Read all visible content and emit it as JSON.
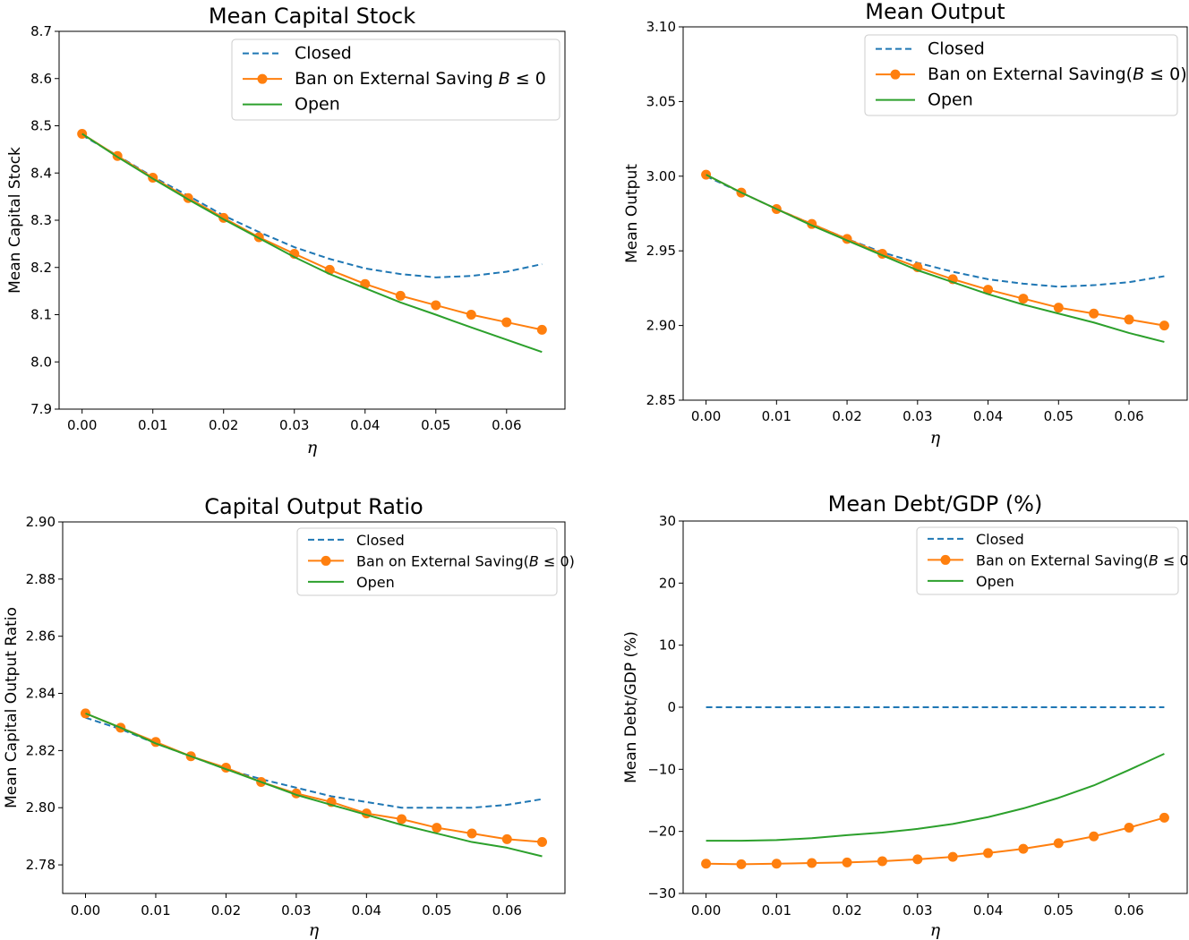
{
  "colors": {
    "closed": "#1f77b4",
    "ban": "#ff7f0e",
    "open": "#2ca02c"
  },
  "chart_data": [
    {
      "type": "line",
      "title": "Mean  Capital Stock",
      "xlabel": "η",
      "ylabel": "Mean  Capital Stock",
      "xlim": [
        -0.00325,
        0.06825
      ],
      "ylim": [
        7.9,
        8.7
      ],
      "xticks": [
        0.0,
        0.01,
        0.02,
        0.03,
        0.04,
        0.05,
        0.06
      ],
      "xtick_labels": [
        "0.00",
        "0.01",
        "0.02",
        "0.03",
        "0.04",
        "0.05",
        "0.06"
      ],
      "yticks": [
        7.9,
        8.0,
        8.1,
        8.2,
        8.3,
        8.4,
        8.5,
        8.6,
        8.7
      ],
      "ytick_labels": [
        "7.9",
        "8.0",
        "8.1",
        "8.2",
        "8.3",
        "8.4",
        "8.5",
        "8.6",
        "8.7"
      ],
      "legend": [
        "Closed",
        "Ban on External Saving $B \\leq 0$",
        "Open"
      ],
      "legend_position": "top-right",
      "x": [
        0.0,
        0.005,
        0.01,
        0.015,
        0.02,
        0.025,
        0.03,
        0.035,
        0.04,
        0.045,
        0.05,
        0.055,
        0.06,
        0.065
      ],
      "series": [
        {
          "name": "Closed",
          "values": [
            8.48,
            8.437,
            8.392,
            8.352,
            8.31,
            8.275,
            8.243,
            8.218,
            8.198,
            8.186,
            8.179,
            8.182,
            8.191,
            8.207
          ]
        },
        {
          "name": "Ban on External Saving",
          "values": [
            8.483,
            8.436,
            8.39,
            8.347,
            8.305,
            8.264,
            8.229,
            8.195,
            8.165,
            8.14,
            8.12,
            8.1,
            8.084,
            8.068
          ]
        },
        {
          "name": "Open",
          "values": [
            8.483,
            8.434,
            8.388,
            8.344,
            8.302,
            8.262,
            8.222,
            8.186,
            8.156,
            8.126,
            8.1,
            8.073,
            8.047,
            8.021
          ]
        }
      ]
    },
    {
      "type": "line",
      "title": "Mean Output",
      "xlabel": "η",
      "ylabel": "Mean Output",
      "xlim": [
        -0.00325,
        0.06825
      ],
      "ylim": [
        2.85,
        3.1
      ],
      "xticks": [
        0.0,
        0.01,
        0.02,
        0.03,
        0.04,
        0.05,
        0.06
      ],
      "xtick_labels": [
        "0.00",
        "0.01",
        "0.02",
        "0.03",
        "0.04",
        "0.05",
        "0.06"
      ],
      "yticks": [
        2.85,
        2.9,
        2.95,
        3.0,
        3.05,
        3.1
      ],
      "ytick_labels": [
        "2.85",
        "2.90",
        "2.95",
        "3.00",
        "3.05",
        "3.10"
      ],
      "legend": [
        "Closed",
        "Ban on External Saving$(B \\leq 0)$",
        "Open"
      ],
      "legend_position": "top-right",
      "x": [
        0.0,
        0.005,
        0.01,
        0.015,
        0.02,
        0.025,
        0.03,
        0.035,
        0.04,
        0.045,
        0.05,
        0.055,
        0.06,
        0.065
      ],
      "series": [
        {
          "name": "Closed",
          "values": [
            3.0,
            2.989,
            2.978,
            2.968,
            2.958,
            2.949,
            2.942,
            2.936,
            2.931,
            2.928,
            2.926,
            2.927,
            2.929,
            2.933
          ]
        },
        {
          "name": "Ban on External Saving",
          "values": [
            3.001,
            2.989,
            2.978,
            2.968,
            2.958,
            2.948,
            2.939,
            2.931,
            2.924,
            2.918,
            2.912,
            2.908,
            2.904,
            2.9
          ]
        },
        {
          "name": "Open",
          "values": [
            3.001,
            2.989,
            2.978,
            2.967,
            2.957,
            2.947,
            2.937,
            2.929,
            2.921,
            2.914,
            2.908,
            2.902,
            2.895,
            2.889
          ]
        }
      ]
    },
    {
      "type": "line",
      "title": "Capital Output Ratio",
      "xlabel": "η",
      "ylabel": "Mean Capital Output Ratio",
      "xlim": [
        -0.00325,
        0.06825
      ],
      "ylim": [
        2.77,
        2.9
      ],
      "xticks": [
        0.0,
        0.01,
        0.02,
        0.03,
        0.04,
        0.05,
        0.06
      ],
      "xtick_labels": [
        "0.00",
        "0.01",
        "0.02",
        "0.03",
        "0.04",
        "0.05",
        "0.06"
      ],
      "yticks": [
        2.78,
        2.8,
        2.82,
        2.84,
        2.86,
        2.88,
        2.9
      ],
      "ytick_labels": [
        "2.78",
        "2.80",
        "2.82",
        "2.84",
        "2.86",
        "2.88",
        "2.90"
      ],
      "legend": [
        "Closed",
        "Ban on External Saving$(B \\leq 0)$",
        "Open"
      ],
      "legend_position": "top-right",
      "x": [
        0.0,
        0.005,
        0.01,
        0.015,
        0.02,
        0.025,
        0.03,
        0.035,
        0.04,
        0.045,
        0.05,
        0.055,
        0.06,
        0.065
      ],
      "series": [
        {
          "name": "Closed",
          "values": [
            2.8315,
            2.8275,
            2.8225,
            2.818,
            2.8135,
            2.81,
            2.807,
            2.804,
            2.802,
            2.8,
            2.8,
            2.8,
            2.801,
            2.803
          ]
        },
        {
          "name": "Ban on External Saving",
          "values": [
            2.833,
            2.828,
            2.823,
            2.818,
            2.814,
            2.809,
            2.805,
            2.802,
            2.798,
            2.796,
            2.793,
            2.791,
            2.789,
            2.788
          ]
        },
        {
          "name": "Open",
          "values": [
            2.833,
            2.828,
            2.8225,
            2.818,
            2.8135,
            2.809,
            2.8045,
            2.801,
            2.7975,
            2.794,
            2.791,
            2.788,
            2.786,
            2.783
          ]
        }
      ]
    },
    {
      "type": "line",
      "title": "Mean Debt/GDP (%)",
      "xlabel": "η",
      "ylabel": "Mean Debt/GDP (%)",
      "xlim": [
        -0.00325,
        0.06825
      ],
      "ylim": [
        -30,
        30
      ],
      "xticks": [
        0.0,
        0.01,
        0.02,
        0.03,
        0.04,
        0.05,
        0.06
      ],
      "xtick_labels": [
        "0.00",
        "0.01",
        "0.02",
        "0.03",
        "0.04",
        "0.05",
        "0.06"
      ],
      "yticks": [
        -30,
        -20,
        -10,
        0,
        10,
        20,
        30
      ],
      "ytick_labels": [
        "−30",
        "−20",
        "−10",
        "0",
        "10",
        "20",
        "30"
      ],
      "legend": [
        "Closed",
        "Ban on External Saving$(B \\leq 0)$",
        "Open"
      ],
      "legend_position": "top-right",
      "x": [
        0.0,
        0.005,
        0.01,
        0.015,
        0.02,
        0.025,
        0.03,
        0.035,
        0.04,
        0.045,
        0.05,
        0.055,
        0.06,
        0.065
      ],
      "series": [
        {
          "name": "Closed",
          "values": [
            0,
            0,
            0,
            0,
            0,
            0,
            0,
            0,
            0,
            0,
            0,
            0,
            0,
            0
          ]
        },
        {
          "name": "Ban on External Saving",
          "values": [
            -25.2,
            -25.3,
            -25.2,
            -25.1,
            -25.0,
            -24.8,
            -24.5,
            -24.1,
            -23.5,
            -22.8,
            -21.9,
            -20.8,
            -19.4,
            -17.8
          ]
        },
        {
          "name": "Open",
          "values": [
            -21.5,
            -21.5,
            -21.4,
            -21.1,
            -20.6,
            -20.2,
            -19.6,
            -18.8,
            -17.7,
            -16.3,
            -14.6,
            -12.6,
            -10.1,
            -7.5
          ]
        }
      ]
    }
  ]
}
